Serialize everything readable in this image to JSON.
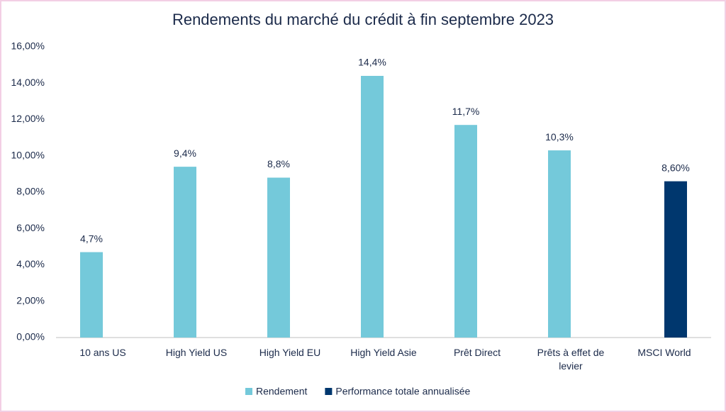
{
  "chart_data": {
    "type": "bar",
    "title": "Rendements du marché du crédit à fin septembre 2023",
    "categories": [
      "10 ans US",
      "High Yield US",
      "High Yield EU",
      "High Yield Asie",
      "Prêt Direct",
      "Prêts à effet de levier",
      "MSCI World"
    ],
    "series": [
      {
        "name": "Rendement",
        "color": "#74c9da",
        "values": [
          4.7,
          9.4,
          8.8,
          14.4,
          11.7,
          10.3,
          null
        ],
        "value_labels": [
          "4,7%",
          "9,4%",
          "8,8%",
          "14,4%",
          "11,7%",
          "10,3%",
          null
        ]
      },
      {
        "name": "Performance totale annualisée",
        "color": "#00376e",
        "values": [
          null,
          null,
          null,
          null,
          null,
          null,
          8.6
        ],
        "value_labels": [
          null,
          null,
          null,
          null,
          null,
          null,
          "8,60%"
        ]
      }
    ],
    "ylim": [
      0,
      16
    ],
    "yticks": [
      {
        "value": 0,
        "label": "0,00%"
      },
      {
        "value": 2,
        "label": "2,00%"
      },
      {
        "value": 4,
        "label": "4,00%"
      },
      {
        "value": 6,
        "label": "6,00%"
      },
      {
        "value": 8,
        "label": "8,00%"
      },
      {
        "value": 10,
        "label": "10,00%"
      },
      {
        "value": 12,
        "label": "12,00%"
      },
      {
        "value": 14,
        "label": "14,00%"
      },
      {
        "value": 16,
        "label": "16,00%"
      }
    ],
    "grid": false
  }
}
